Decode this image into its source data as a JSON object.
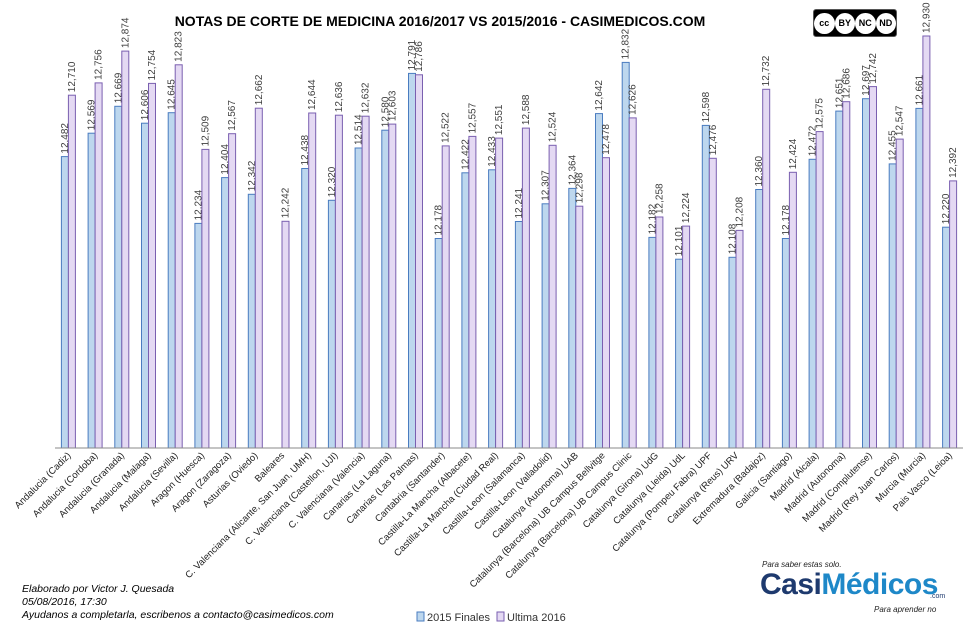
{
  "chart_data": {
    "type": "bar",
    "title": "NOTAS DE CORTE DE MEDICINA 2016/2017  VS 2015/2016  - CASIMEDICOS.COM",
    "xlabel": "",
    "ylabel": "",
    "ylim": [
      11.4,
      12.93
    ],
    "grid": false,
    "legend": "bottom-center",
    "categories": [
      "Andalucia (Cadiz)",
      "Andalucia (Cordoba)",
      "Andalucia (Granada)",
      "Andalucia (Malaga)",
      "Andalucia (Sevilla)",
      "Aragon (Huesca)",
      "Aragon (Zaragoza)",
      "Asturias (Oviedo)",
      "Baleares",
      "C. Valenciana (Alicante, San Juan, UMH)",
      "C. Valenciana (Castellon, UJI)",
      "C. Valenciana (Valencia)",
      "Canarias (La Laguna)",
      "Canarias (Las Palmas)",
      "Cantabria (Santander)",
      "Castilla-La Mancha (Albacete)",
      "Castilla-La Mancha (Ciudad Real)",
      "Castilla-Leon (Salamanca)",
      "Castilla-Leon (Valladolid)",
      "Catalunya (Autonoma) UAB",
      "Catalunya (Barcelona) UB Campus Bellvitge",
      "Catalunya (Barcelona) UB Campus Clinic",
      "Catalunya (Girona) UdG",
      "Catalunya (Lleida) UdL",
      "Catalunya (Pompeu Fabra) UPF",
      "Catalunya (Reus) URV",
      "Extremadura (Badajoz)",
      "Galicia (Santiago)",
      "Madrid (Alcala)",
      "Madrid (Autonoma)",
      "Madrid (Complutense)",
      "Madrid (Rey Juan Carlos)",
      "Murcia (Murcia)",
      "Pais Vasco (Leioa)"
    ],
    "series": [
      {
        "name": "2015 Finales",
        "color": "#bdd7ee",
        "values": [
          12.482,
          12.569,
          12.669,
          12.606,
          12.645,
          12.234,
          12.404,
          12.342,
          null,
          12.438,
          12.32,
          12.514,
          12.58,
          12.791,
          12.178,
          12.422,
          12.433,
          12.241,
          12.307,
          12.364,
          12.642,
          12.832,
          12.182,
          12.101,
          12.598,
          12.108,
          12.36,
          12.178,
          12.472,
          12.651,
          12.697,
          12.455,
          12.661,
          12.22
        ],
        "labels": [
          "12,482",
          "12,569",
          "12,669",
          "12,606",
          "12,645",
          "12,234",
          "12,404",
          "12,342",
          "",
          "12,438",
          "12,320",
          "12,514",
          "12,580",
          "12,791",
          "12,178",
          "12,422",
          "12,433",
          "12,241",
          "12,307",
          "12,364",
          "12,642",
          "12,832",
          "12,182",
          "12,101",
          "12,598",
          "12,108",
          "12,360",
          "12,178",
          "12,472",
          "12,651",
          "12,697",
          "12,455",
          "12,661",
          "12,220"
        ]
      },
      {
        "name": "Ultima 2016",
        "color": "#e4d9f3",
        "values": [
          12.71,
          12.756,
          12.874,
          12.754,
          12.823,
          12.509,
          12.567,
          12.662,
          12.242,
          12.644,
          12.636,
          12.632,
          12.603,
          12.786,
          12.522,
          12.557,
          12.551,
          12.588,
          12.524,
          12.298,
          12.478,
          12.626,
          12.258,
          12.224,
          12.476,
          12.208,
          12.732,
          12.424,
          12.575,
          12.686,
          12.742,
          12.547,
          12.93,
          12.392
        ],
        "labels": [
          "12,710",
          "12,756",
          "12,874",
          "12,754",
          "12,823",
          "12,509",
          "12,567",
          "12,662",
          "12,242",
          "12,644",
          "12,636",
          "12,632",
          "12,603",
          "12,786",
          "12,522",
          "12,557",
          "12,551",
          "12,588",
          "12,524",
          "12,298",
          "12,478",
          "12,626",
          "12,258",
          "12,224",
          "12,476",
          "12,208",
          "12,732",
          "12,424",
          "12,575",
          "12,686",
          "12,742",
          "12,547",
          "12,930",
          "12,392"
        ]
      }
    ]
  },
  "credits": {
    "author": "Elaborado por Victor J. Quesada",
    "date": "05/08/2016, 17:30",
    "help": "Ayudanos a completarla, escribenos a contacto@casimedicos.com"
  },
  "license": {
    "cc": "cc",
    "by": "BY",
    "nc": "NC",
    "nd": "ND"
  },
  "logo": {
    "tagline_top": "Para saber estas solo.",
    "brand_a": "Casi",
    "brand_b": "Médicos",
    "domain": ".com",
    "tagline_bottom": "Para aprender no"
  }
}
